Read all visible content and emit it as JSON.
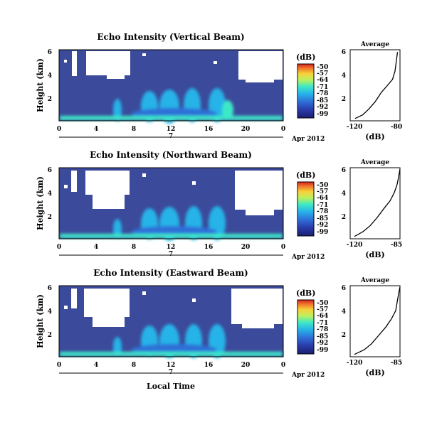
{
  "panels": [
    {
      "title": "Echo Intensity (Vertical Beam)",
      "avg_title": "Average",
      "avg_xlim": [
        -120,
        -80
      ]
    },
    {
      "title": "Echo Intensity (Northward Beam)",
      "avg_title": "Average",
      "avg_xlim": [
        -120,
        -85
      ]
    },
    {
      "title": "Echo Intensity (Eastward Beam)",
      "avg_title": "Average",
      "avg_xlim": [
        -120,
        -85
      ]
    }
  ],
  "ylabel": "Height (km)",
  "xlabel": "Local Time",
  "day_label": "7",
  "date_label": "Apr 2012",
  "cbar_label": "(dB)",
  "avg_xlabel": "(dB)",
  "chart_data": {
    "type": "heatmap",
    "x_ticks": [
      "0",
      "4",
      "8",
      "12",
      "16",
      "20",
      "0"
    ],
    "y_ticks": [
      "2",
      "4",
      "6"
    ],
    "ylim_km": [
      0,
      6
    ],
    "xlim_hours": [
      0,
      24
    ],
    "colorbar_ticks": [
      "-50",
      "-57",
      "-64",
      "-71",
      "-78",
      "-85",
      "-92",
      "-99"
    ],
    "avg_y_ticks": [
      "2",
      "4",
      "6"
    ],
    "colors": {
      "background_blue": "#3b4a9a",
      "scale": [
        "#1a1f6e",
        "#2a3aa8",
        "#2f6fd8",
        "#27b3e8",
        "#3ee8c8",
        "#b8f060",
        "#f7d23a",
        "#f0782a",
        "#d92020"
      ]
    },
    "series_avg": [
      {
        "panel": "Vertical Beam",
        "points": [
          [
            -116,
            0.2
          ],
          [
            -110,
            0.5
          ],
          [
            -105,
            1.0
          ],
          [
            -100,
            1.6
          ],
          [
            -95,
            2.4
          ],
          [
            -90,
            3.0
          ],
          [
            -86,
            3.5
          ],
          [
            -84,
            4.2
          ],
          [
            -83,
            5.0
          ],
          [
            -82,
            5.8
          ]
        ]
      },
      {
        "panel": "Northward Beam",
        "points": [
          [
            -117,
            0.2
          ],
          [
            -111,
            0.6
          ],
          [
            -106,
            1.1
          ],
          [
            -101,
            1.8
          ],
          [
            -96,
            2.6
          ],
          [
            -92,
            3.2
          ],
          [
            -89,
            3.9
          ],
          [
            -87,
            4.6
          ],
          [
            -86,
            5.2
          ],
          [
            -85,
            5.9
          ]
        ]
      },
      {
        "panel": "Eastward Beam",
        "points": [
          [
            -117,
            0.2
          ],
          [
            -110,
            0.6
          ],
          [
            -105,
            1.1
          ],
          [
            -100,
            1.8
          ],
          [
            -95,
            2.5
          ],
          [
            -91,
            3.2
          ],
          [
            -88,
            3.9
          ],
          [
            -87,
            4.6
          ],
          [
            -86,
            5.3
          ],
          [
            -85,
            5.9
          ]
        ]
      }
    ]
  }
}
